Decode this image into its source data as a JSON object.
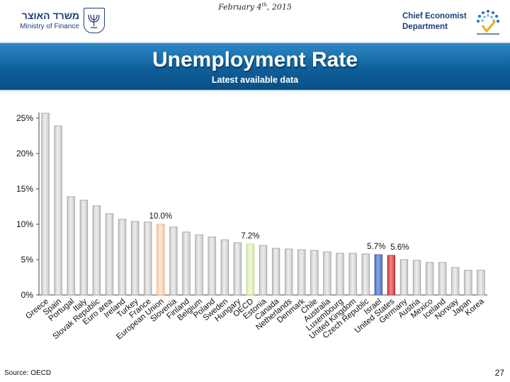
{
  "header": {
    "date": "February 4",
    "date_suffix": "th",
    "date_year": ", 2015",
    "ministry_he": "משרד האוצר",
    "ministry_en": "Ministry of Finance",
    "dept_line1": "Chief Economist",
    "dept_line2": "Department"
  },
  "colors": {
    "band": "#0f5f9a",
    "title_text": "#ffffff",
    "bar_default": "#c8c8c8",
    "bar_eu": "#f7c9a0",
    "bar_oecd": "#d7eaa6",
    "bar_israel": "#4a72c2",
    "bar_us": "#d23b3b"
  },
  "footer": {
    "source": "Source: OECD",
    "page": "27"
  },
  "chart_data": {
    "type": "bar",
    "title": "Unemployment Rate",
    "subtitle": "Latest available data",
    "xlabel": "",
    "ylabel": "",
    "ylim": [
      0,
      25
    ],
    "yticks": [
      "0%",
      "5%",
      "10%",
      "15%",
      "20%",
      "25%"
    ],
    "grid": false,
    "categories": [
      "Greece",
      "Spain",
      "Portugal",
      "Italy",
      "Slovak Republic",
      "Euro area",
      "Ireland",
      "Turkey",
      "France",
      "European Union",
      "Slovenia",
      "Finland",
      "Belgium",
      "Poland",
      "Sweden",
      "Hungary",
      "OECD",
      "Estonia",
      "Canada",
      "Netherlands",
      "Denmark",
      "Chile",
      "Australia",
      "Luxembourg",
      "United Kingdom",
      "Czech Republic",
      "Israel",
      "United States",
      "Germany",
      "Austria",
      "Mexico",
      "Iceland",
      "Norway",
      "Japan",
      "Korea"
    ],
    "values": [
      25.7,
      23.9,
      13.9,
      13.4,
      12.6,
      11.5,
      10.7,
      10.4,
      10.3,
      10.0,
      9.6,
      8.9,
      8.5,
      8.2,
      7.8,
      7.4,
      7.2,
      7.0,
      6.6,
      6.5,
      6.4,
      6.3,
      6.1,
      5.9,
      5.9,
      5.8,
      5.7,
      5.6,
      5.0,
      4.9,
      4.6,
      4.6,
      3.9,
      3.5,
      3.5
    ],
    "highlight": {
      "European Union": "bar_eu",
      "OECD": "bar_oecd",
      "Israel": "bar_israel",
      "United States": "bar_us"
    },
    "data_labels": [
      {
        "category": "European Union",
        "text": "10.0%"
      },
      {
        "category": "OECD",
        "text": "7.2%"
      },
      {
        "category": "Israel",
        "text": "5.7%"
      },
      {
        "category": "United States",
        "text": "5.6%"
      }
    ]
  }
}
